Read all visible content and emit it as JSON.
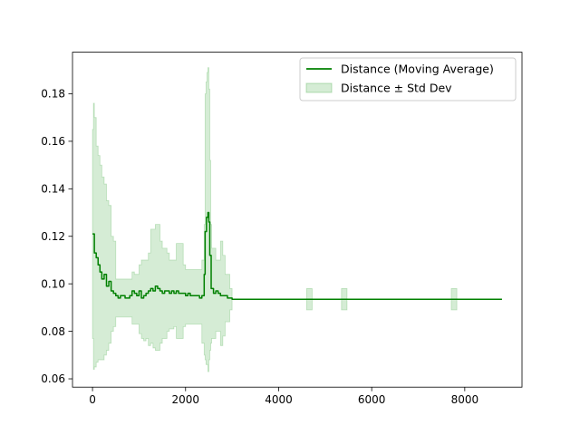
{
  "chart_data": {
    "type": "line",
    "title": "",
    "xlabel": "",
    "ylabel": "",
    "xlim": [
      -430,
      9230
    ],
    "ylim": [
      0.0565,
      0.1975
    ],
    "x_ticks": [
      0,
      2000,
      4000,
      6000,
      8000
    ],
    "y_ticks": [
      0.06,
      0.08,
      0.1,
      0.12,
      0.14,
      0.16,
      0.18
    ],
    "grid": false,
    "legend_position": "upper right",
    "colors": {
      "line": "#008000",
      "band_fill": "#2ca02c",
      "band_alpha": 0.2
    },
    "series": [
      {
        "name": "Distance (Moving Average)",
        "kind": "line",
        "x": [
          0,
          40,
          80,
          120,
          160,
          200,
          250,
          300,
          350,
          400,
          450,
          500,
          550,
          600,
          650,
          700,
          750,
          800,
          850,
          900,
          950,
          1000,
          1050,
          1100,
          1150,
          1200,
          1250,
          1300,
          1350,
          1400,
          1450,
          1500,
          1550,
          1600,
          1650,
          1700,
          1750,
          1800,
          1850,
          1900,
          1950,
          2000,
          2050,
          2100,
          2150,
          2200,
          2250,
          2300,
          2350,
          2400,
          2420,
          2450,
          2480,
          2500,
          2520,
          2550,
          2600,
          2650,
          2700,
          2750,
          2800,
          2850,
          2900,
          3000,
          3500,
          4000,
          4500,
          5000,
          5500,
          6000,
          6500,
          7000,
          7500,
          8000,
          8500,
          8800
        ],
        "y": [
          0.121,
          0.113,
          0.111,
          0.108,
          0.105,
          0.102,
          0.104,
          0.099,
          0.101,
          0.097,
          0.096,
          0.095,
          0.094,
          0.095,
          0.095,
          0.094,
          0.094,
          0.095,
          0.097,
          0.096,
          0.095,
          0.097,
          0.094,
          0.095,
          0.096,
          0.097,
          0.098,
          0.097,
          0.099,
          0.098,
          0.097,
          0.096,
          0.097,
          0.097,
          0.096,
          0.097,
          0.096,
          0.097,
          0.096,
          0.096,
          0.096,
          0.095,
          0.096,
          0.095,
          0.095,
          0.095,
          0.095,
          0.094,
          0.095,
          0.104,
          0.122,
          0.128,
          0.13,
          0.126,
          0.112,
          0.098,
          0.096,
          0.097,
          0.096,
          0.095,
          0.095,
          0.095,
          0.094,
          0.0935,
          0.0935,
          0.0935,
          0.0935,
          0.0935,
          0.0935,
          0.0935,
          0.0935,
          0.0935,
          0.0935,
          0.0935,
          0.0935,
          0.0935
        ]
      },
      {
        "name": "Distance ± Std Dev",
        "kind": "band",
        "x": [
          0,
          20,
          40,
          80,
          120,
          160,
          200,
          250,
          300,
          350,
          400,
          450,
          500,
          550,
          600,
          650,
          700,
          750,
          800,
          850,
          900,
          950,
          1000,
          1050,
          1100,
          1150,
          1200,
          1250,
          1300,
          1350,
          1400,
          1450,
          1500,
          1550,
          1600,
          1650,
          1700,
          1750,
          1800,
          1850,
          1900,
          1950,
          2000,
          2050,
          2100,
          2150,
          2200,
          2250,
          2300,
          2350,
          2400,
          2420,
          2440,
          2460,
          2480,
          2500,
          2520,
          2540,
          2560,
          2600,
          2650,
          2700,
          2750,
          2800,
          2850,
          2900,
          2950,
          2990,
          3000,
          3100,
          4000,
          4580,
          4600,
          4700,
          4720,
          5330,
          5350,
          5450,
          5470,
          7690,
          7710,
          7810,
          7830,
          8800
        ],
        "upper": [
          0.165,
          0.176,
          0.17,
          0.158,
          0.154,
          0.15,
          0.145,
          0.142,
          0.135,
          0.133,
          0.12,
          0.118,
          0.102,
          0.102,
          0.102,
          0.102,
          0.102,
          0.102,
          0.102,
          0.105,
          0.104,
          0.104,
          0.108,
          0.11,
          0.11,
          0.11,
          0.113,
          0.123,
          0.123,
          0.125,
          0.125,
          0.118,
          0.115,
          0.115,
          0.113,
          0.11,
          0.11,
          0.11,
          0.117,
          0.117,
          0.117,
          0.108,
          0.106,
          0.106,
          0.106,
          0.106,
          0.106,
          0.106,
          0.106,
          0.11,
          0.125,
          0.18,
          0.185,
          0.189,
          0.191,
          0.182,
          0.152,
          0.125,
          0.115,
          0.115,
          0.11,
          0.11,
          0.118,
          0.112,
          0.104,
          0.104,
          0.098,
          0.098,
          0.0935,
          0.0935,
          0.0935,
          0.0935,
          0.098,
          0.098,
          0.0935,
          0.0935,
          0.098,
          0.098,
          0.0935,
          0.0935,
          0.098,
          0.098,
          0.0935,
          0.0935
        ],
        "lower": [
          0.077,
          0.064,
          0.065,
          0.067,
          0.068,
          0.068,
          0.068,
          0.07,
          0.072,
          0.075,
          0.08,
          0.082,
          0.086,
          0.086,
          0.086,
          0.086,
          0.086,
          0.086,
          0.086,
          0.083,
          0.083,
          0.083,
          0.079,
          0.077,
          0.076,
          0.077,
          0.074,
          0.075,
          0.073,
          0.072,
          0.072,
          0.075,
          0.077,
          0.077,
          0.08,
          0.081,
          0.081,
          0.082,
          0.077,
          0.077,
          0.077,
          0.082,
          0.083,
          0.083,
          0.083,
          0.083,
          0.083,
          0.083,
          0.083,
          0.075,
          0.07,
          0.068,
          0.066,
          0.066,
          0.063,
          0.068,
          0.072,
          0.075,
          0.077,
          0.077,
          0.08,
          0.08,
          0.074,
          0.078,
          0.084,
          0.084,
          0.089,
          0.089,
          0.0935,
          0.0935,
          0.0935,
          0.0935,
          0.089,
          0.089,
          0.0935,
          0.0935,
          0.089,
          0.089,
          0.0935,
          0.0935,
          0.089,
          0.089,
          0.0935,
          0.0935
        ]
      }
    ]
  }
}
